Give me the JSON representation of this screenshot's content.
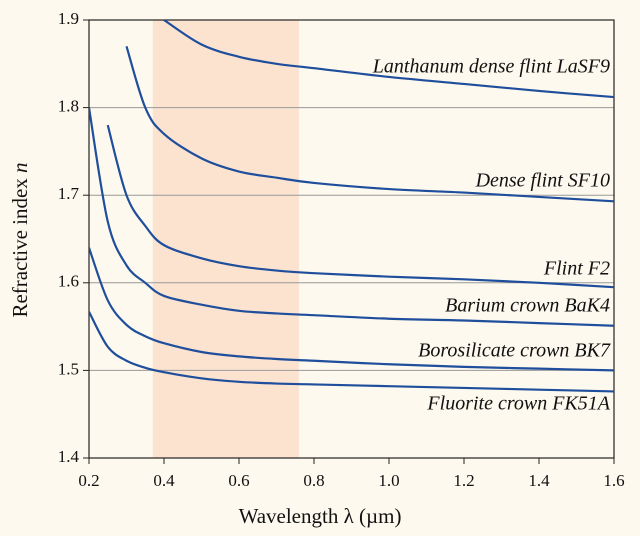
{
  "chart_data": {
    "type": "line",
    "x_label": "Wavelength λ (µm)",
    "y_label_text": "Refractive index ",
    "y_label_symbol": "n",
    "x": [
      0.2,
      0.25,
      0.3,
      0.35,
      0.4,
      0.5,
      0.6,
      0.7,
      0.8,
      1.0,
      1.2,
      1.4,
      1.6
    ],
    "series": [
      {
        "name": "Lanthanum dense flint LaSF9",
        "color": "#1f4e9c",
        "values": [
          null,
          null,
          null,
          null,
          1.9,
          1.872,
          1.858,
          1.85,
          1.845,
          1.835,
          1.827,
          1.819,
          1.812
        ]
      },
      {
        "name": "Dense flint SF10",
        "color": "#1f4e9c",
        "values": [
          null,
          null,
          1.87,
          1.8,
          1.77,
          1.742,
          1.727,
          1.72,
          1.714,
          1.707,
          1.703,
          1.698,
          1.693
        ]
      },
      {
        "name": "Flint F2",
        "color": "#1f4e9c",
        "values": [
          null,
          1.78,
          1.7,
          1.665,
          1.643,
          1.628,
          1.619,
          1.614,
          1.611,
          1.607,
          1.604,
          1.6,
          1.595
        ]
      },
      {
        "name": "Barium crown BaK4",
        "color": "#1f4e9c",
        "values": [
          1.8,
          1.67,
          1.62,
          1.6,
          1.585,
          1.575,
          1.568,
          1.565,
          1.563,
          1.559,
          1.557,
          1.554,
          1.551
        ]
      },
      {
        "name": "Borosilicate crown BK7",
        "color": "#1f4e9c",
        "values": [
          1.64,
          1.58,
          1.552,
          1.539,
          1.531,
          1.521,
          1.516,
          1.513,
          1.511,
          1.507,
          1.504,
          1.502,
          1.5
        ]
      },
      {
        "name": "Fluorite crown FK51A",
        "color": "#1f4e9c",
        "values": [
          1.567,
          1.527,
          1.511,
          1.503,
          1.498,
          1.491,
          1.487,
          1.485,
          1.484,
          1.482,
          1.48,
          1.478,
          1.476
        ]
      }
    ],
    "shaded_region": {
      "x": [
        0.37,
        0.76
      ],
      "color": "#fbe3d0"
    },
    "xlim": [
      0.2,
      1.6
    ],
    "ylim": [
      1.4,
      1.9
    ],
    "xticks": [
      {
        "value": 0.2,
        "label": "0.2"
      },
      {
        "value": 0.4,
        "label": "0.4"
      },
      {
        "value": 0.6,
        "label": "0.6"
      },
      {
        "value": 0.8,
        "label": "0.8"
      },
      {
        "value": 1.0,
        "label": "1.0"
      },
      {
        "value": 1.2,
        "label": "1.2"
      },
      {
        "value": 1.4,
        "label": "1.4"
      },
      {
        "value": 1.6,
        "label": "1.6"
      }
    ],
    "yticks": [
      1.4,
      1.5,
      1.6,
      1.7,
      1.8,
      1.9
    ],
    "grid": true
  }
}
